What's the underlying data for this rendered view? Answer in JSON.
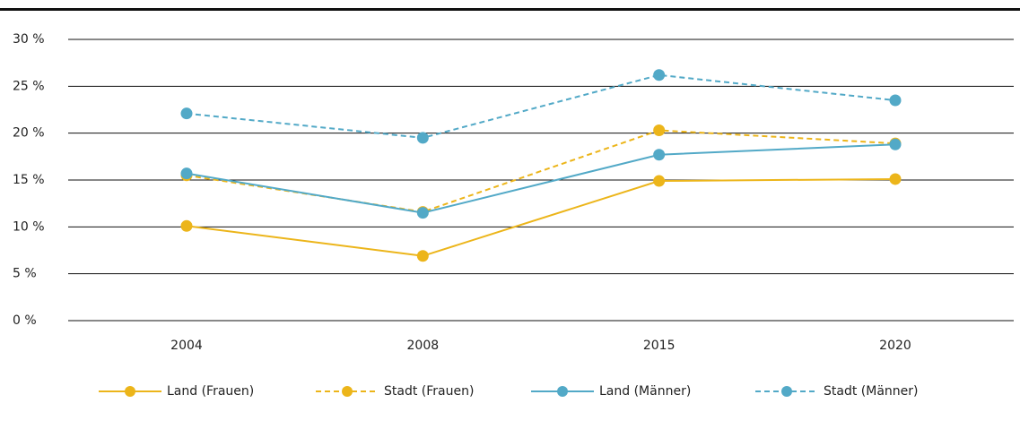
{
  "chart_data": {
    "type": "line",
    "categories": [
      "2004",
      "2008",
      "2015",
      "2020"
    ],
    "series": [
      {
        "name": "Land (Frauen)",
        "color": "#ecb51a",
        "dashed": false,
        "values": [
          10.1,
          6.9,
          14.9,
          15.1
        ]
      },
      {
        "name": "Stadt (Frauen)",
        "color": "#ecb51a",
        "dashed": true,
        "values": [
          15.5,
          11.6,
          20.3,
          18.9
        ]
      },
      {
        "name": "Land (Männer)",
        "color": "#52a9c7",
        "dashed": false,
        "values": [
          15.7,
          11.5,
          17.7,
          18.8
        ]
      },
      {
        "name": "Stadt (Männer)",
        "color": "#52a9c7",
        "dashed": true,
        "values": [
          22.1,
          19.5,
          26.2,
          23.5
        ]
      }
    ],
    "ylim": [
      0,
      30
    ],
    "yticks": [
      {
        "value": 0,
        "label": "0 %"
      },
      {
        "value": 5,
        "label": "5 %"
      },
      {
        "value": 10,
        "label": "10 %"
      },
      {
        "value": 15,
        "label": "15 %"
      },
      {
        "value": 20,
        "label": "20 %"
      },
      {
        "value": 25,
        "label": "25 %"
      },
      {
        "value": 30,
        "label": "30 %"
      }
    ],
    "grid": true
  }
}
